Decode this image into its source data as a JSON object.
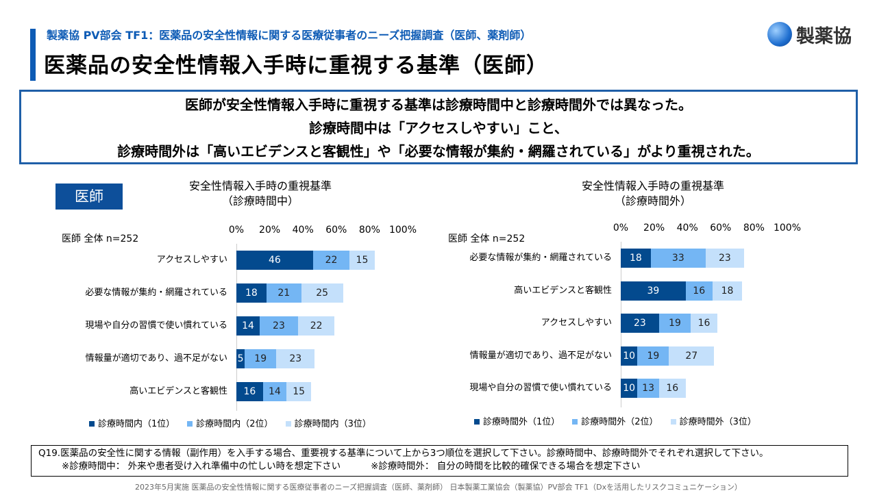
{
  "header": {
    "subtitle": "製薬協 PV部会 TF1：医薬品の安全性情報に関する医療従事者のニーズ把握調査（医師、薬剤師）",
    "title": "医薬品の安全性情報入手時に重視する基準（医師）",
    "logo_text": "製薬協"
  },
  "summary": {
    "lines": [
      "医師が安全性情報入手時に重視する基準は診療時間中と診療時間外では異なった。",
      "診療時間中は「アクセスしやすい」こと、",
      "診療時間外は「高いエビデンスと客観性」や「必要な情報が集約・網羅されている」がより重視された。"
    ]
  },
  "badge": "医師",
  "colors": {
    "rank1": "#034a8e",
    "rank2": "#74b6f4",
    "rank3": "#c4e0fb"
  },
  "chart_data": [
    {
      "type": "bar",
      "stacked": true,
      "orientation": "horizontal",
      "title": "安全性情報入手時の重視基準",
      "subtitle": "（診療時間中）",
      "n_label": "医師 全体 n=252",
      "xlim": [
        0,
        100
      ],
      "ticks": [
        "0%",
        "20%",
        "40%",
        "60%",
        "80%",
        "100%"
      ],
      "categories": [
        "アクセスしやすい",
        "必要な情報が集約・網羅されている",
        "現場や自分の習慣で使い慣れている",
        "情報量が適切であり、過不足がない",
        "高いエビデンスと客観性"
      ],
      "series": [
        {
          "name": "診療時間内（1位）",
          "values": [
            46,
            18,
            14,
            5,
            16
          ]
        },
        {
          "name": "診療時間内（2位）",
          "values": [
            22,
            21,
            23,
            19,
            14
          ]
        },
        {
          "name": "診療時間内（3位）",
          "values": [
            15,
            25,
            22,
            23,
            15
          ]
        }
      ]
    },
    {
      "type": "bar",
      "stacked": true,
      "orientation": "horizontal",
      "title": "安全性情報入手時の重視基準",
      "subtitle": "（診療時間外）",
      "n_label": "医師 全体 n=252",
      "xlim": [
        0,
        100
      ],
      "ticks": [
        "0%",
        "20%",
        "40%",
        "60%",
        "80%",
        "100%"
      ],
      "categories": [
        "必要な情報が集約・網羅されている",
        "高いエビデンスと客観性",
        "アクセスしやすい",
        "情報量が適切であり、過不足がない",
        "現場や自分の習慣で使い慣れている"
      ],
      "series": [
        {
          "name": "診療時間外（1位）",
          "values": [
            18,
            39,
            23,
            10,
            10
          ]
        },
        {
          "name": "診療時間外（2位）",
          "values": [
            33,
            16,
            19,
            19,
            13
          ]
        },
        {
          "name": "診療時間外（3位）",
          "values": [
            23,
            18,
            16,
            27,
            16
          ]
        }
      ]
    }
  ],
  "question": {
    "line1": "Q19.医薬品の安全性に関する情報（副作用）を入手する場合、重要視する基準について上から3つ順位を選択して下さい。診療時間中、診療時間外でそれぞれ選択して下さい。",
    "note1": "※診療時間中： 外来や患者受け入れ準備中の忙しい時を想定下さい",
    "note2": "※診療時間外： 自分の時間を比較的確保できる場合を想定下さい"
  },
  "footer": "2023年5月実施 医薬品の安全性情報に関する医療従事者のニーズ把握調査（医師、薬剤師） 日本製薬工業協会（製薬協）PV部会 TF1（Dxを活用したリスクコミュニケーション）"
}
